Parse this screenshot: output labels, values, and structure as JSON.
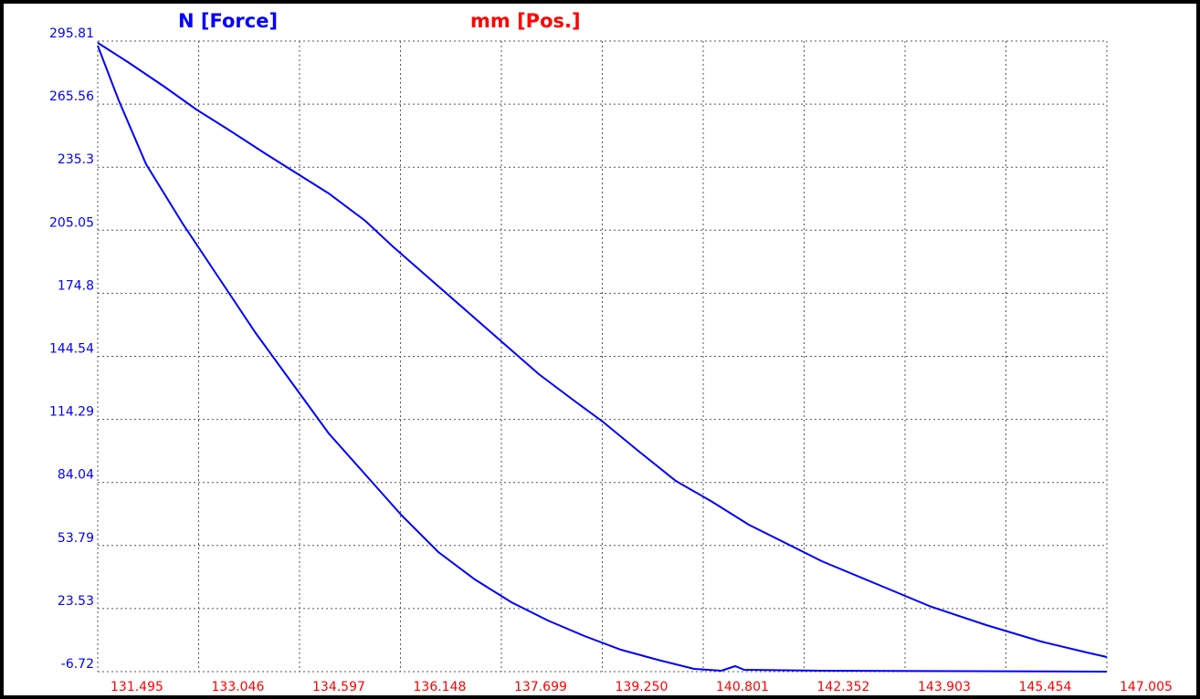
{
  "chart_data": {
    "type": "line",
    "y_label": "N [Force]",
    "x_label": "mm [Pos.]",
    "xlim": [
      131.495,
      147.005
    ],
    "ylim": [
      -6.72,
      295.81
    ],
    "xticks": [
      131.495,
      133.046,
      134.597,
      136.148,
      137.699,
      {
        "value": 139.25,
        "label": "139.250"
      },
      140.801,
      142.352,
      143.903,
      145.454,
      147.005
    ],
    "yticks": [
      -6.72,
      23.53,
      53.79,
      84.04,
      114.29,
      144.54,
      174.8,
      205.05,
      235.3,
      265.56,
      295.81
    ],
    "ytick_labels_fixed": null,
    "grid": true,
    "series": [
      {
        "color": "#0000ff",
        "x": [
          131.495,
          131.958,
          132.52,
          133.011,
          133.502,
          134.064,
          134.555,
          135.046,
          135.607,
          136.028,
          136.59,
          137.151,
          137.713,
          138.274,
          138.835,
          139.256,
          139.818,
          140.38,
          140.941,
          141.502,
          142.064,
          142.625,
          143.467,
          144.309,
          145.152,
          145.994,
          146.696,
          147.005
        ],
        "values": [
          295.0,
          285.75,
          273.93,
          262.98,
          253.35,
          241.97,
          232.33,
          222.7,
          209.57,
          197.31,
          181.98,
          166.66,
          151.34,
          136.01,
          122.88,
          113.24,
          98.8,
          84.79,
          74.72,
          63.77,
          55.01,
          46.26,
          35.31,
          24.37,
          15.61,
          7.73,
          2.47,
          0.29
        ]
      },
      {
        "color": "#0000ff",
        "x": [
          131.495,
          131.818,
          132.239,
          132.8,
          133.362,
          133.923,
          134.485,
          135.046,
          135.607,
          136.169,
          136.73,
          137.292,
          137.853,
          138.415,
          138.976,
          139.537,
          140.099,
          140.66,
          141.082,
          141.292,
          141.433,
          142.626,
          147.005
        ],
        "values": [
          293.63,
          267.36,
          236.71,
          208.25,
          181.98,
          155.71,
          131.63,
          107.55,
          87.85,
          68.15,
          50.64,
          37.5,
          26.55,
          17.8,
          10.36,
          3.79,
          -1.03,
          -5.41,
          -6.28,
          -4.09,
          -5.84,
          -6.28,
          -6.72
        ]
      }
    ]
  }
}
